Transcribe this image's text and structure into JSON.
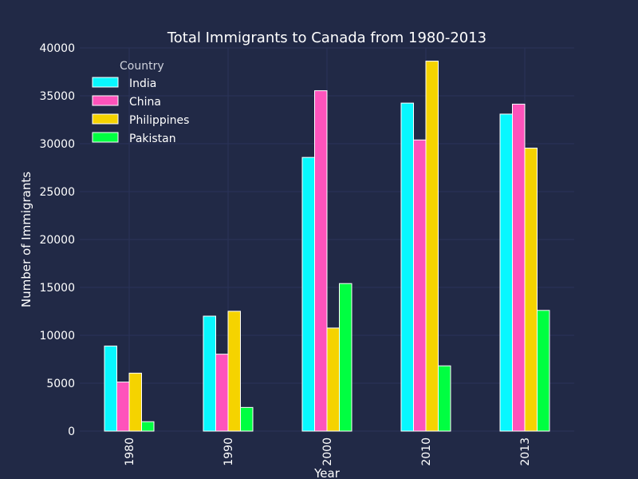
{
  "chart_data": {
    "type": "bar",
    "title": "Total Immigrants to Canada from 1980-2013",
    "xlabel": "Year",
    "ylabel": "Number of Immigrants",
    "categories": [
      "1980",
      "1990",
      "2000",
      "2010",
      "2013"
    ],
    "ylim": [
      0,
      40000
    ],
    "yticks": [
      "0",
      "5000",
      "10000",
      "15000",
      "20000",
      "25000",
      "30000",
      "35000",
      "40000"
    ],
    "grid": true,
    "legend": {
      "title": "Country",
      "placement": "top-left"
    },
    "series": [
      {
        "name": "India",
        "color": "#08F7FE",
        "values": [
          8880,
          12000,
          28570,
          34240,
          33090
        ]
      },
      {
        "name": "China",
        "color": "#FE53BB",
        "values": [
          5120,
          8030,
          35530,
          30390,
          34130
        ]
      },
      {
        "name": "Philippines",
        "color": "#F5D300",
        "values": [
          6050,
          12510,
          10760,
          38620,
          29540
        ]
      },
      {
        "name": "Pakistan",
        "color": "#00ff41",
        "values": [
          980,
          2470,
          15400,
          6810,
          12600
        ]
      }
    ]
  }
}
